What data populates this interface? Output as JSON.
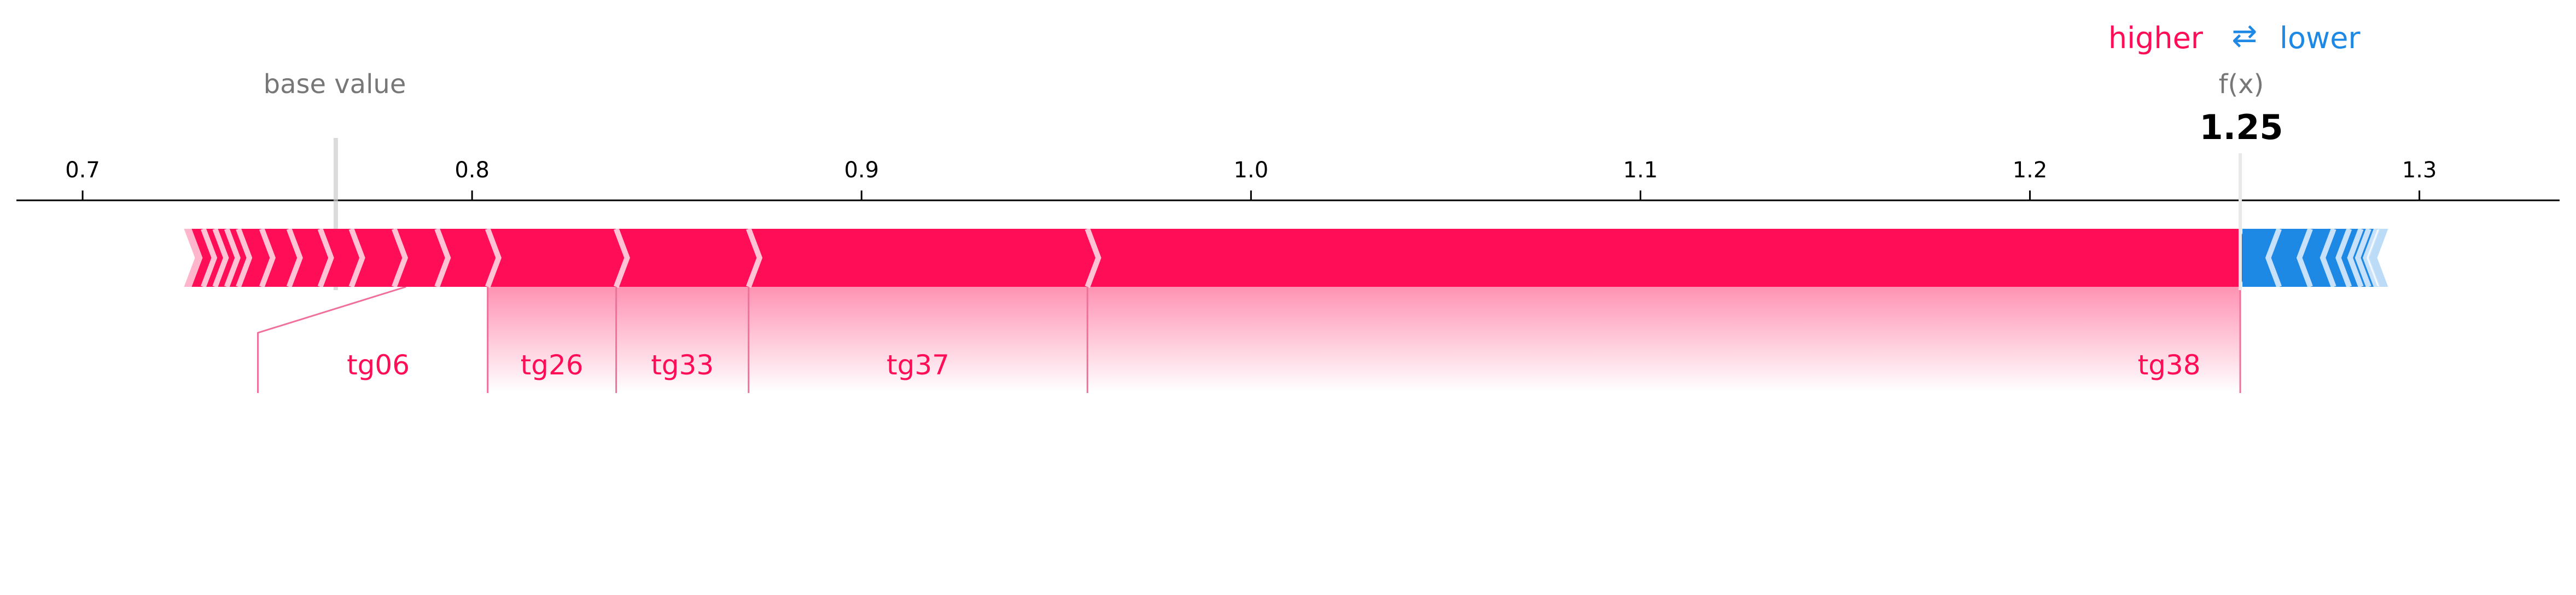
{
  "legend": {
    "higher_label": "higher",
    "arrow_symbol": "⇄",
    "lower_label": "lower",
    "higher_color": "#ff0d57",
    "lower_color": "#1e88e5"
  },
  "base_value_label": "base value",
  "fx_label": "f(x)",
  "fx_value_label": "1.25",
  "chart_data": {
    "type": "force",
    "base_value": 0.765,
    "output_value": 1.254,
    "xlim": [
      0.683,
      1.336
    ],
    "xticks": [
      0.7,
      0.8,
      0.9,
      1.0,
      1.1,
      1.2,
      1.3
    ],
    "xtick_labels": [
      "0.7",
      "0.8",
      "0.9",
      "1.0",
      "1.1",
      "1.2",
      "1.3"
    ],
    "positive": {
      "color": "#ff0d57",
      "start": 0.728,
      "segments": [
        0.728,
        0.731,
        0.734,
        0.737,
        0.74,
        0.746,
        0.753,
        0.761,
        0.769,
        0.78,
        0.791,
        0.804,
        0.837,
        0.871,
        0.958,
        1.254
      ]
    },
    "negative": {
      "color": "#1e88e5",
      "end": 1.29,
      "segments": [
        1.254,
        1.264,
        1.272,
        1.278,
        1.282,
        1.285,
        1.287,
        1.289,
        1.29
      ]
    },
    "features": [
      {
        "name": "tg06",
        "start": 0.78,
        "end": 0.804
      },
      {
        "name": "tg26",
        "start": 0.804,
        "end": 0.837
      },
      {
        "name": "tg33",
        "start": 0.837,
        "end": 0.871
      },
      {
        "name": "tg37",
        "start": 0.871,
        "end": 0.958
      },
      {
        "name": "tg38",
        "start": 0.958,
        "end": 1.254
      }
    ]
  }
}
